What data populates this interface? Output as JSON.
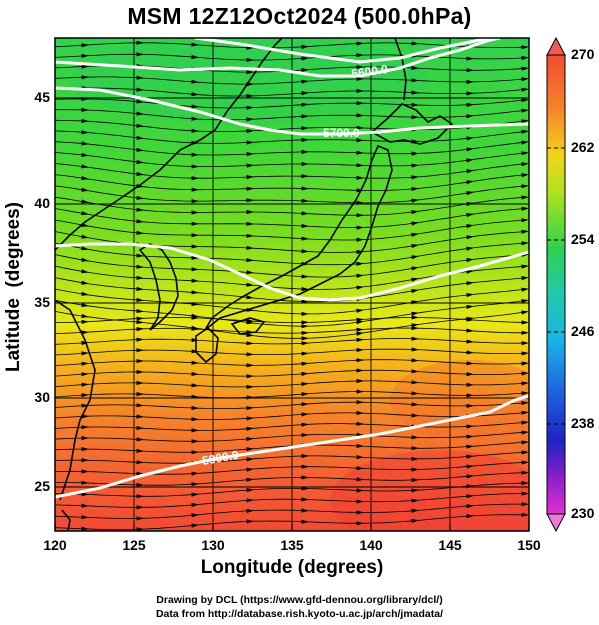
{
  "title": "MSM 12Z12Oct2024 (500.0hPa)",
  "axes": {
    "xlabel": "Longitude (degrees)",
    "ylabel": "Latitude  (degrees)",
    "x_ticks": [
      "120",
      "125",
      "130",
      "135",
      "140",
      "145",
      "150"
    ],
    "y_ticks": [
      "45",
      "40",
      "35",
      "30",
      "25"
    ]
  },
  "colorbar": {
    "ticks": [
      "270",
      "262",
      "254",
      "246",
      "238",
      "230"
    ],
    "min": 230,
    "max": 270
  },
  "contours": [
    "5900.0",
    "5700.0",
    "5800.0",
    "5600.0"
  ],
  "credits": {
    "line1": "Drawing by DCL (https://www.gfd-dennou.org/library/dcl/)",
    "line2": "Data from http://database.rish.kyoto-u.ac.jp/arch/jmadata/"
  },
  "chart_data": {
    "type": "heatmap",
    "title": "MSM 12Z12Oct2024 (500.0hPa)",
    "xlabel": "Longitude (degrees)",
    "ylabel": "Latitude  (degrees)",
    "xlim": [
      120,
      150
    ],
    "ylim": [
      22.4,
      47.6
    ],
    "field": "temperature (colorbar 230-270) with streamlines and geopotential height contours",
    "colorbar_range": [
      230,
      270
    ],
    "contour_levels": [
      5600,
      5700,
      5800,
      5900
    ],
    "grid": true
  }
}
